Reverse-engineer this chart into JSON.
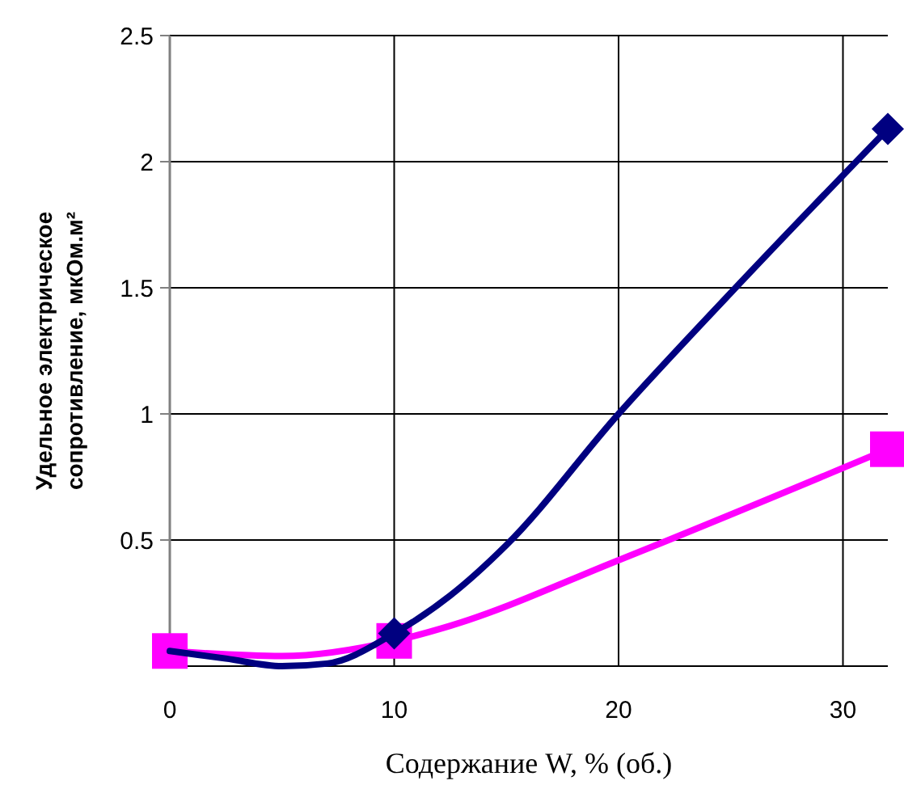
{
  "chart_data": {
    "type": "line",
    "xlabel": "Содержание W, % (об.)",
    "ylabel": "Удельное электрическое\nсопротивление, мкОм.м²",
    "xlim": [
      0,
      32
    ],
    "xticks": [
      0,
      10,
      20,
      30
    ],
    "ylim": [
      0,
      2.5
    ],
    "yticks": [
      {
        "value": 0,
        "label": null
      },
      0.5,
      1,
      1.5,
      2,
      2.5
    ],
    "grid": true,
    "line_style": "solid",
    "series": [
      {
        "color": "#ff00ff",
        "marker": "none",
        "x": [
          0,
          5,
          10,
          12.5,
          20,
          32
        ],
        "values": [
          0.06,
          0.04,
          0.1,
          0.16,
          0.42,
          0.86
        ]
      },
      {
        "type": "scatter",
        "color": "#ff00ff",
        "marker": "square",
        "x": [
          0,
          10,
          32
        ],
        "values": [
          0.06,
          0.1,
          0.86
        ]
      },
      {
        "color": "#000080",
        "marker": "none",
        "x": [
          0,
          2.5,
          5,
          7,
          10,
          12.5,
          15,
          20,
          25,
          32
        ],
        "values": [
          0.06,
          0.03,
          0.0,
          0.01,
          0.13,
          0.28,
          0.48,
          1.0,
          1.48,
          2.13
        ]
      },
      {
        "type": "scatter",
        "color": "#000080",
        "marker": "diamond",
        "x": [
          10,
          32
        ],
        "values": [
          0.13,
          2.13
        ]
      }
    ]
  }
}
